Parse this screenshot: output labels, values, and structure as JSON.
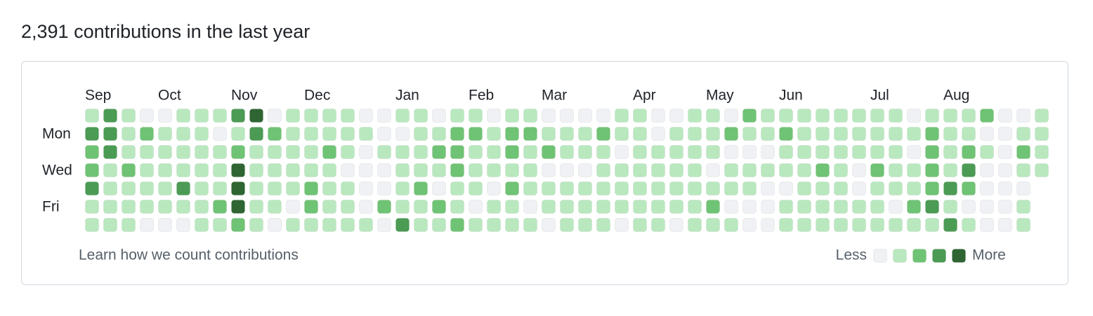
{
  "header": {
    "title": "2,391 contributions in the last year"
  },
  "contribution_graph": {
    "month_labels": [
      "Sep",
      null,
      null,
      null,
      "Oct",
      null,
      null,
      null,
      "Nov",
      null,
      null,
      null,
      "Dec",
      null,
      null,
      null,
      null,
      "Jan",
      null,
      null,
      null,
      "Feb",
      null,
      null,
      null,
      "Mar",
      null,
      null,
      null,
      null,
      "Apr",
      null,
      null,
      null,
      "May",
      null,
      null,
      null,
      "Jun",
      null,
      null,
      null,
      null,
      "Jul",
      null,
      null,
      null,
      "Aug",
      null,
      null,
      null,
      null,
      null
    ],
    "day_labels": [
      null,
      "Mon",
      null,
      "Wed",
      null,
      "Fri",
      null
    ],
    "level_colors": [
      "#eff1f4",
      "#b9e8bf",
      "#6fc374",
      "#4b9b54",
      "#2e6532"
    ],
    "rows": [
      [
        1,
        3,
        1,
        0,
        0,
        1,
        1,
        1,
        3,
        4,
        0,
        1,
        1,
        1,
        1,
        0,
        0,
        1,
        1,
        0,
        1,
        1,
        0,
        1,
        1,
        0,
        0,
        0,
        0,
        1,
        1,
        0,
        0,
        1,
        1,
        0,
        2,
        1,
        1,
        1,
        1,
        1,
        1,
        1,
        1,
        0,
        1,
        1,
        1,
        2,
        0,
        0,
        1
      ],
      [
        3,
        3,
        1,
        2,
        1,
        1,
        1,
        0,
        1,
        3,
        2,
        1,
        1,
        1,
        1,
        1,
        0,
        0,
        1,
        1,
        2,
        2,
        1,
        2,
        2,
        1,
        1,
        1,
        2,
        1,
        1,
        0,
        1,
        1,
        1,
        2,
        1,
        1,
        2,
        1,
        1,
        1,
        1,
        1,
        1,
        1,
        2,
        1,
        1,
        0,
        0,
        1,
        1
      ],
      [
        2,
        3,
        1,
        1,
        1,
        1,
        1,
        1,
        2,
        1,
        1,
        1,
        1,
        2,
        1,
        0,
        1,
        1,
        1,
        2,
        2,
        1,
        1,
        2,
        1,
        2,
        1,
        1,
        1,
        0,
        1,
        1,
        1,
        1,
        1,
        0,
        0,
        0,
        1,
        1,
        1,
        1,
        1,
        1,
        1,
        0,
        2,
        1,
        2,
        1,
        0,
        2,
        1
      ],
      [
        2,
        1,
        2,
        1,
        1,
        1,
        1,
        1,
        4,
        1,
        1,
        1,
        1,
        1,
        0,
        0,
        0,
        1,
        1,
        1,
        2,
        1,
        1,
        1,
        1,
        0,
        0,
        0,
        1,
        1,
        1,
        1,
        1,
        1,
        0,
        1,
        1,
        1,
        1,
        1,
        2,
        1,
        0,
        2,
        1,
        1,
        2,
        1,
        3,
        0,
        0,
        1,
        1
      ],
      [
        3,
        1,
        1,
        1,
        1,
        3,
        1,
        1,
        4,
        1,
        1,
        1,
        2,
        1,
        1,
        0,
        0,
        1,
        2,
        0,
        1,
        1,
        0,
        2,
        1,
        1,
        1,
        1,
        1,
        1,
        1,
        1,
        1,
        1,
        1,
        1,
        1,
        0,
        0,
        1,
        1,
        1,
        0,
        1,
        1,
        1,
        2,
        3,
        2,
        0,
        0,
        0
      ],
      [
        1,
        1,
        1,
        1,
        1,
        1,
        1,
        2,
        4,
        1,
        1,
        0,
        2,
        1,
        1,
        0,
        2,
        1,
        1,
        2,
        1,
        0,
        1,
        1,
        0,
        1,
        1,
        1,
        1,
        1,
        1,
        1,
        1,
        1,
        2,
        0,
        0,
        0,
        1,
        1,
        1,
        1,
        1,
        1,
        0,
        2,
        3,
        1,
        0,
        0,
        0,
        1
      ],
      [
        1,
        1,
        1,
        0,
        0,
        0,
        1,
        1,
        2,
        1,
        0,
        1,
        1,
        1,
        1,
        1,
        0,
        3,
        1,
        1,
        2,
        1,
        1,
        1,
        1,
        0,
        1,
        1,
        1,
        0,
        1,
        1,
        0,
        1,
        1,
        1,
        0,
        0,
        1,
        1,
        1,
        1,
        1,
        1,
        1,
        1,
        1,
        3,
        1,
        0,
        0,
        1
      ]
    ]
  },
  "footer": {
    "link": "Learn how we count contributions",
    "legend_less": "Less",
    "legend_more": "More"
  }
}
